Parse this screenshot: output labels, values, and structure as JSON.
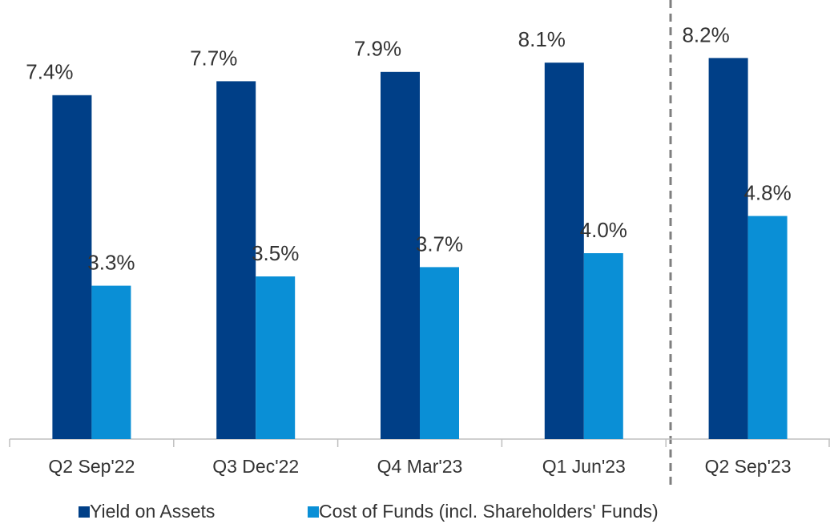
{
  "chart_data": {
    "type": "bar",
    "categories": [
      "Q2 Sep'22",
      "Q3 Dec'22",
      "Q4 Mar'23",
      "Q1 Jun'23",
      "Q2 Sep'23"
    ],
    "series": [
      {
        "name": "Yield on Assets",
        "color": "#003f87",
        "values": [
          7.4,
          7.7,
          7.9,
          8.1,
          8.2
        ],
        "value_labels": [
          "7.4%",
          "7.7%",
          "7.9%",
          "8.1%",
          "8.2%"
        ]
      },
      {
        "name": "Cost of Funds (incl. Shareholders' Funds)",
        "color": "#0a8fd6",
        "values": [
          3.3,
          3.5,
          3.7,
          4.0,
          4.8
        ],
        "value_labels": [
          "3.3%",
          "3.5%",
          "3.7%",
          "4.0%",
          "4.8%"
        ]
      }
    ],
    "legend": "bottom"
  }
}
